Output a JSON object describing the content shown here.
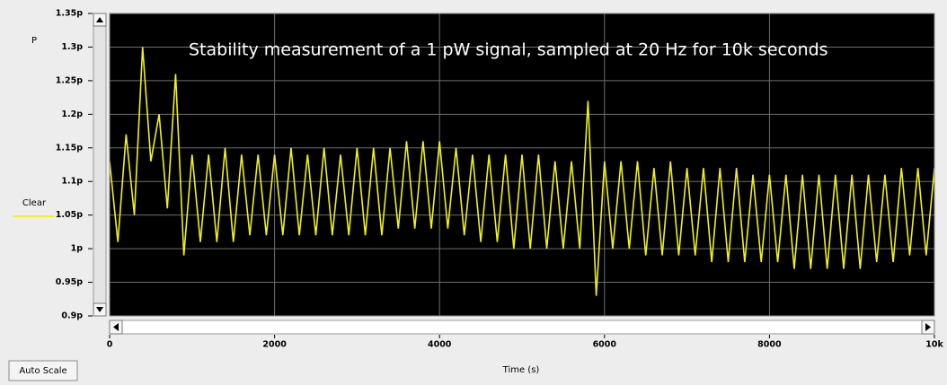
{
  "chart_data": {
    "type": "line",
    "title": "Stability measurement  of a 1 pW signal, sampled at 20 Hz for 10k seconds",
    "y_label": "P",
    "x_label": "Time (s)",
    "button": "Auto Scale",
    "grid": true,
    "background": "#000000",
    "xlim": [
      0,
      10000
    ],
    "ylim": [
      0.9,
      1.35
    ],
    "xticks": [
      0,
      2000,
      4000,
      6000,
      8000,
      {
        "value": 10000,
        "label": "10k"
      }
    ],
    "yticks": [
      {
        "value": 0.9,
        "label": "0.9p"
      },
      {
        "value": 0.95,
        "label": "0.95p"
      },
      {
        "value": 1,
        "label": "1p"
      },
      {
        "value": 1.05,
        "label": "1.05p"
      },
      {
        "value": 1.1,
        "label": "1.1p"
      },
      {
        "value": 1.15,
        "label": "1.15p"
      },
      {
        "value": 1.2,
        "label": "1.2p"
      },
      {
        "value": 1.25,
        "label": "1.25p"
      },
      {
        "value": 1.3,
        "label": "1.3p"
      },
      {
        "value": 1.35,
        "label": "1.35p"
      }
    ],
    "x": [
      0,
      100,
      200,
      300,
      400,
      500,
      600,
      700,
      800,
      900,
      1000,
      1100,
      1200,
      1300,
      1400,
      1500,
      1600,
      1700,
      1800,
      1900,
      2000,
      2100,
      2200,
      2300,
      2400,
      2500,
      2600,
      2700,
      2800,
      2900,
      3000,
      3100,
      3200,
      3300,
      3400,
      3500,
      3600,
      3700,
      3800,
      3900,
      4000,
      4100,
      4200,
      4300,
      4400,
      4500,
      4600,
      4700,
      4800,
      4900,
      5000,
      5100,
      5200,
      5300,
      5400,
      5500,
      5600,
      5700,
      5800,
      5900,
      6000,
      6100,
      6200,
      6300,
      6400,
      6500,
      6600,
      6700,
      6800,
      6900,
      7000,
      7100,
      7200,
      7300,
      7400,
      7500,
      7600,
      7700,
      7800,
      7900,
      8000,
      8100,
      8200,
      8300,
      8400,
      8500,
      8600,
      8700,
      8800,
      8900,
      9000,
      9100,
      9200,
      9300,
      9400,
      9500,
      9600,
      9700,
      9800,
      9900,
      10000
    ],
    "series": [
      {
        "name": "Clear",
        "color": "#f2ef1c",
        "values": [
          1.13,
          1.01,
          1.17,
          1.05,
          1.3,
          1.13,
          1.2,
          1.06,
          1.26,
          0.99,
          1.14,
          1.01,
          1.14,
          1.01,
          1.15,
          1.01,
          1.14,
          1.02,
          1.14,
          1.02,
          1.14,
          1.02,
          1.15,
          1.02,
          1.14,
          1.02,
          1.15,
          1.02,
          1.14,
          1.02,
          1.15,
          1.02,
          1.15,
          1.02,
          1.15,
          1.03,
          1.16,
          1.03,
          1.16,
          1.03,
          1.16,
          1.03,
          1.15,
          1.02,
          1.14,
          1.01,
          1.14,
          1.01,
          1.14,
          1.0,
          1.14,
          1.0,
          1.14,
          1.0,
          1.13,
          1.0,
          1.13,
          1.0,
          1.22,
          0.93,
          1.13,
          1.0,
          1.13,
          1.0,
          1.13,
          0.99,
          1.12,
          0.99,
          1.13,
          0.99,
          1.12,
          0.99,
          1.12,
          0.98,
          1.12,
          0.98,
          1.12,
          0.98,
          1.11,
          0.98,
          1.11,
          0.98,
          1.11,
          0.97,
          1.11,
          0.97,
          1.11,
          0.97,
          1.11,
          0.97,
          1.11,
          0.97,
          1.11,
          0.98,
          1.11,
          0.98,
          1.12,
          0.99,
          1.12,
          0.99,
          1.12
        ]
      }
    ]
  }
}
